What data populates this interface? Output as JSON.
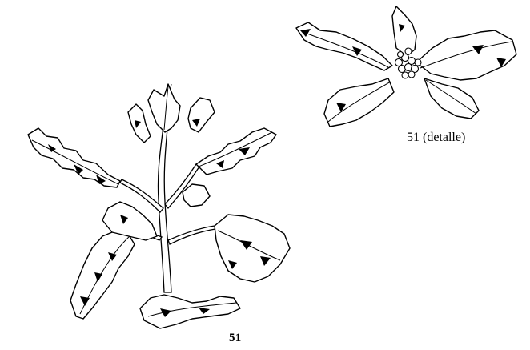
{
  "figure": {
    "main_label": "51",
    "detail_label": "51 (detalle)"
  }
}
